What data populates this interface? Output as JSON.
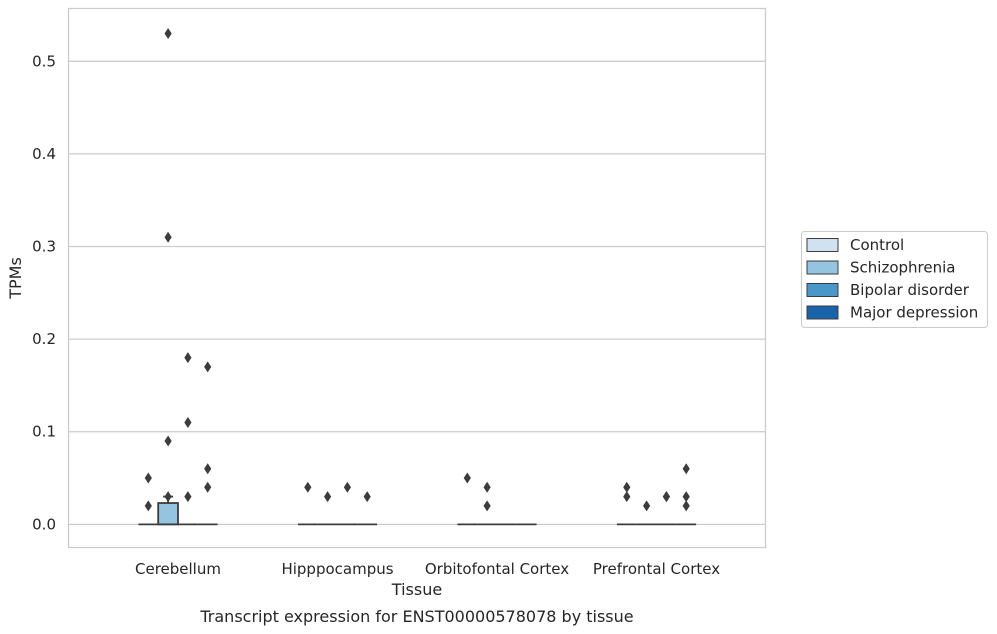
{
  "chart_data": {
    "type": "box",
    "title": "Transcript expression for ENST00000578078 by tissue",
    "xlabel": "Tissue",
    "ylabel": "TPMs",
    "ylim": [
      -0.025,
      0.557
    ],
    "yticks": [
      "0.0",
      "0.1",
      "0.2",
      "0.3",
      "0.4",
      "0.5"
    ],
    "grid": "horizontal",
    "legend_position": "right",
    "categories": [
      "Cerebellum",
      "Hipppocampus",
      "Orbitofontal Cortex",
      "Prefrontal Cortex"
    ],
    "series": [
      {
        "name": "Control",
        "color": "#d0e1f2"
      },
      {
        "name": "Schizophrenia",
        "color": "#94c4df"
      },
      {
        "name": "Bipolar disorder",
        "color": "#4a98c9"
      },
      {
        "name": "Major depression",
        "color": "#1764ab"
      }
    ],
    "boxes": [
      {
        "category": 0,
        "series": 0,
        "q1": 0,
        "median": 0,
        "q3": 0,
        "whisker_low": 0,
        "whisker_high": 0,
        "outliers": [
          0.05,
          0.02
        ]
      },
      {
        "category": 0,
        "series": 1,
        "q1": 0,
        "median": 0,
        "q3": 0.023,
        "whisker_low": 0,
        "whisker_high": 0.03,
        "outliers": [
          0.53,
          0.31,
          0.09,
          0.03
        ]
      },
      {
        "category": 0,
        "series": 2,
        "q1": 0,
        "median": 0,
        "q3": 0,
        "whisker_low": 0,
        "whisker_high": 0,
        "outliers": [
          0.18,
          0.11,
          0.03
        ]
      },
      {
        "category": 0,
        "series": 3,
        "q1": 0,
        "median": 0,
        "q3": 0,
        "whisker_low": 0,
        "whisker_high": 0,
        "outliers": [
          0.17,
          0.06,
          0.04
        ]
      },
      {
        "category": 1,
        "series": 0,
        "q1": 0,
        "median": 0,
        "q3": 0,
        "whisker_low": 0,
        "whisker_high": 0,
        "outliers": [
          0.04
        ]
      },
      {
        "category": 1,
        "series": 1,
        "q1": 0,
        "median": 0,
        "q3": 0,
        "whisker_low": 0,
        "whisker_high": 0,
        "outliers": [
          0.03
        ]
      },
      {
        "category": 1,
        "series": 2,
        "q1": 0,
        "median": 0,
        "q3": 0,
        "whisker_low": 0,
        "whisker_high": 0,
        "outliers": [
          0.04
        ]
      },
      {
        "category": 1,
        "series": 3,
        "q1": 0,
        "median": 0,
        "q3": 0,
        "whisker_low": 0,
        "whisker_high": 0,
        "outliers": [
          0.03
        ]
      },
      {
        "category": 2,
        "series": 0,
        "q1": 0,
        "median": 0,
        "q3": 0,
        "whisker_low": 0,
        "whisker_high": 0,
        "outliers": [
          0.05
        ]
      },
      {
        "category": 2,
        "series": 1,
        "q1": 0,
        "median": 0,
        "q3": 0,
        "whisker_low": 0,
        "whisker_high": 0,
        "outliers": [
          0.04,
          0.02
        ]
      },
      {
        "category": 2,
        "series": 2,
        "q1": 0,
        "median": 0,
        "q3": 0,
        "whisker_low": 0,
        "whisker_high": 0,
        "outliers": []
      },
      {
        "category": 2,
        "series": 3,
        "q1": 0,
        "median": 0,
        "q3": 0,
        "whisker_low": 0,
        "whisker_high": 0,
        "outliers": []
      },
      {
        "category": 3,
        "series": 0,
        "q1": 0,
        "median": 0,
        "q3": 0,
        "whisker_low": 0,
        "whisker_high": 0,
        "outliers": [
          0.04,
          0.03
        ]
      },
      {
        "category": 3,
        "series": 1,
        "q1": 0,
        "median": 0,
        "q3": 0,
        "whisker_low": 0,
        "whisker_high": 0,
        "outliers": [
          0.02
        ]
      },
      {
        "category": 3,
        "series": 2,
        "q1": 0,
        "median": 0,
        "q3": 0,
        "whisker_low": 0,
        "whisker_high": 0,
        "outliers": [
          0.03,
          0.03
        ]
      },
      {
        "category": 3,
        "series": 3,
        "q1": 0,
        "median": 0,
        "q3": 0,
        "whisker_low": 0,
        "whisker_high": 0,
        "outliers": [
          0.06,
          0.03,
          0.02
        ]
      }
    ]
  }
}
